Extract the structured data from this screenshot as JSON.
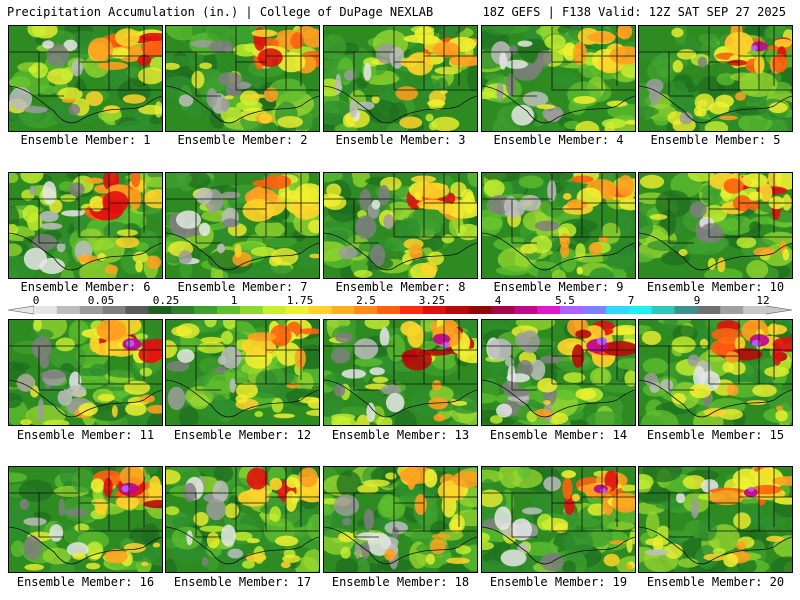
{
  "header": {
    "left_title": "Precipitation Accumulation (in.) | College of DuPage NEXLAB",
    "right_title": "18Z GEFS | F138 Valid: 12Z SAT SEP 27 2025"
  },
  "colorbar": {
    "unit": "in.",
    "tick_labels": [
      "0",
      "0.05",
      "0.25",
      "1",
      "1.75",
      "2.5",
      "3.25",
      "4",
      "5.5",
      "7",
      "9",
      "12"
    ],
    "colors": [
      "#e6e6e6",
      "#bdbdbd",
      "#9c9c9c",
      "#7f7f7f",
      "#5a5a5a",
      "#1f5f1f",
      "#2f7f2f",
      "#3f9f2f",
      "#5fbf2f",
      "#8fd82f",
      "#c8f02f",
      "#f0f030",
      "#ffd42a",
      "#ffb020",
      "#ff8a18",
      "#ff6010",
      "#ff2a10",
      "#e01010",
      "#b80a0a",
      "#900808",
      "#a0084a",
      "#c00a8a",
      "#e018d0",
      "#b060ff",
      "#7f80ff",
      "#30d8ff",
      "#20f0f0",
      "#30c8b8",
      "#409090",
      "#707070",
      "#a0a0a0",
      "#c8c8c8"
    ]
  },
  "members": [
    {
      "label": "Ensemble Member: 1",
      "ne": 0.85,
      "se": 0.35,
      "gray": 0.3,
      "magenta": 0.0
    },
    {
      "label": "Ensemble Member: 2",
      "ne": 0.8,
      "se": 0.45,
      "gray": 0.45,
      "magenta": 0.0
    },
    {
      "label": "Ensemble Member: 3",
      "ne": 0.7,
      "se": 0.4,
      "gray": 0.35,
      "magenta": 0.0
    },
    {
      "label": "Ensemble Member: 4",
      "ne": 0.55,
      "se": 0.3,
      "gray": 0.7,
      "magenta": 0.0
    },
    {
      "label": "Ensemble Member: 5",
      "ne": 0.9,
      "se": 0.5,
      "gray": 0.2,
      "magenta": 0.6
    },
    {
      "label": "Ensemble Member: 6",
      "ne": 0.9,
      "se": 0.55,
      "gray": 0.5,
      "magenta": 0.0
    },
    {
      "label": "Ensemble Member: 7",
      "ne": 0.6,
      "se": 0.25,
      "gray": 0.6,
      "magenta": 0.0
    },
    {
      "label": "Ensemble Member: 8",
      "ne": 0.85,
      "se": 0.4,
      "gray": 0.35,
      "magenta": 0.0
    },
    {
      "label": "Ensemble Member: 9",
      "ne": 0.6,
      "se": 0.45,
      "gray": 0.25,
      "magenta": 0.0
    },
    {
      "label": "Ensemble Member: 10",
      "ne": 0.85,
      "se": 0.3,
      "gray": 0.2,
      "magenta": 0.0
    },
    {
      "label": "Ensemble Member: 11",
      "ne": 0.95,
      "se": 0.5,
      "gray": 0.5,
      "magenta": 0.8
    },
    {
      "label": "Ensemble Member: 12",
      "ne": 0.8,
      "se": 0.55,
      "gray": 0.3,
      "magenta": 0.0
    },
    {
      "label": "Ensemble Member: 13",
      "ne": 0.95,
      "se": 0.4,
      "gray": 0.45,
      "magenta": 0.7
    },
    {
      "label": "Ensemble Member: 14",
      "ne": 1.0,
      "se": 0.35,
      "gray": 0.85,
      "magenta": 1.0
    },
    {
      "label": "Ensemble Member: 15",
      "ne": 0.95,
      "se": 0.4,
      "gray": 0.35,
      "magenta": 0.85
    },
    {
      "label": "Ensemble Member: 16",
      "ne": 0.9,
      "se": 0.45,
      "gray": 0.3,
      "magenta": 0.8
    },
    {
      "label": "Ensemble Member: 17",
      "ne": 0.7,
      "se": 0.35,
      "gray": 0.45,
      "magenta": 0.0
    },
    {
      "label": "Ensemble Member: 18",
      "ne": 0.55,
      "se": 0.3,
      "gray": 0.55,
      "magenta": 0.0
    },
    {
      "label": "Ensemble Member: 19",
      "ne": 0.8,
      "se": 0.35,
      "gray": 0.45,
      "magenta": 0.5
    },
    {
      "label": "Ensemble Member: 20",
      "ne": 0.85,
      "se": 0.4,
      "gray": 0.2,
      "magenta": 0.5
    }
  ]
}
